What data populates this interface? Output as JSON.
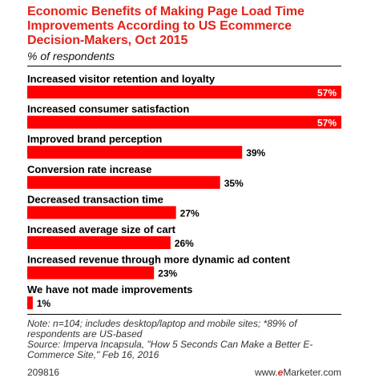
{
  "title": "Economic Benefits of Making Page Load Time Improvements According to US Ecommerce Decision-Makers, Oct 2015",
  "subtitle": "% of respondents",
  "colors": {
    "title": "#e2231a",
    "bar": "#ff0000",
    "footer_text": "#333333"
  },
  "chart_data": {
    "type": "bar",
    "orientation": "horizontal",
    "unit": "%",
    "categories": [
      "Increased visitor retention and loyalty",
      "Increased consumer satisfaction",
      "Improved brand perception",
      "Conversion rate increase",
      "Decreased transaction time",
      "Increased average size of cart",
      "Increased revenue through more dynamic ad content",
      "We have not made improvements"
    ],
    "values": [
      57,
      57,
      39,
      35,
      27,
      26,
      23,
      1
    ],
    "data_labels": [
      "57%",
      "57%",
      "39%",
      "35%",
      "27%",
      "26%",
      "23%",
      "1%"
    ],
    "xlim": [
      0,
      57
    ],
    "grid": false,
    "legend": "none"
  },
  "note": "Note: n=104; includes desktop/laptop and mobile sites; *89% of respondents are US-based",
  "source": "Source: Imperva Incapsula, \"How 5 Seconds Can Make a Better E-Commerce Site,\" Feb 16, 2016",
  "footer": {
    "id": "209816",
    "brand_prefix": "www.",
    "brand_e": "e",
    "brand_suffix": "Marketer.com"
  }
}
